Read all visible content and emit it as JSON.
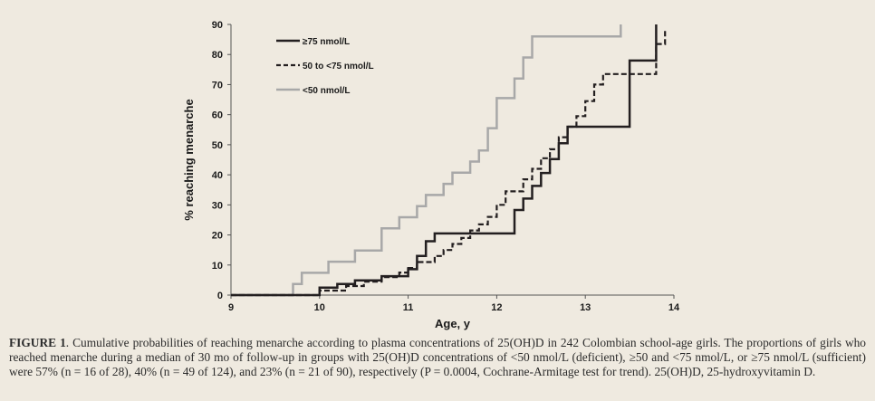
{
  "chart_data": {
    "type": "line",
    "step": true,
    "xlabel": "Age, y",
    "ylabel": "% reaching menarche",
    "xlim": [
      9,
      14
    ],
    "ylim": [
      0,
      90
    ],
    "xticks": [
      9,
      10,
      11,
      12,
      13,
      14
    ],
    "yticks": [
      0,
      10,
      20,
      30,
      40,
      50,
      60,
      70,
      80,
      90
    ],
    "grid": false,
    "legend_position": "top-left",
    "series": [
      {
        "name": "≥75 nmol/L",
        "color": "#231f20",
        "dash": "solid",
        "x": [
          9.0,
          9.7,
          10.0,
          10.2,
          10.4,
          10.7,
          11.0,
          11.1,
          11.2,
          11.3,
          12.0,
          12.2,
          12.3,
          12.4,
          12.5,
          12.6,
          12.7,
          12.8,
          13.5,
          13.8
        ],
        "y": [
          0,
          0,
          2.5,
          3.7,
          4.9,
          6.3,
          8.6,
          13.0,
          17.9,
          20.5,
          20.5,
          28.3,
          32.1,
          36.3,
          40.6,
          45.2,
          50.5,
          56.0,
          78.0,
          90.0
        ]
      },
      {
        "name": "50 to <75 nmol/L",
        "color": "#231f20",
        "dash": "dashed",
        "x": [
          9.0,
          9.7,
          10.0,
          10.3,
          10.5,
          10.7,
          10.9,
          11.0,
          11.1,
          11.3,
          11.4,
          11.5,
          11.6,
          11.7,
          11.8,
          11.9,
          12.0,
          12.1,
          12.3,
          12.4,
          12.5,
          12.6,
          12.7,
          12.8,
          12.9,
          13.0,
          13.1,
          13.2,
          13.8,
          13.9
        ],
        "y": [
          0,
          0,
          1.5,
          3.0,
          4.5,
          6.0,
          7.5,
          9.0,
          11.0,
          13.0,
          15.0,
          17.0,
          19.0,
          21.5,
          23.5,
          26.0,
          30.0,
          34.5,
          38.5,
          42.0,
          45.5,
          48.5,
          52.5,
          56.0,
          59.5,
          64.5,
          70.0,
          73.5,
          83.5,
          88.5
        ]
      },
      {
        "name": "<50 nmol/L",
        "color": "#a8a8a8",
        "dash": "solid",
        "x": [
          9.0,
          9.7,
          9.8,
          10.1,
          10.4,
          10.7,
          10.9,
          11.1,
          11.2,
          11.4,
          11.5,
          11.7,
          11.8,
          11.9,
          12.0,
          12.2,
          12.3,
          12.4,
          13.4
        ],
        "y": [
          0,
          3.7,
          7.4,
          11.1,
          14.8,
          22.2,
          25.9,
          29.6,
          33.3,
          37.0,
          40.7,
          44.4,
          48.1,
          55.5,
          65.5,
          72.0,
          79.0,
          86.0,
          90.0
        ]
      }
    ]
  },
  "caption": {
    "label": "FIGURE 1",
    "text": ". Cumulative probabilities of reaching menarche according to plasma concentrations of 25(OH)D in 242 Colombian school-age girls. The proportions of girls who reached menarche during a median of 30 mo of follow-up in groups with 25(OH)D concentrations of <50 nmol/L (deficient), ≥50 and <75 nmol/L, or ≥75 nmol/L (sufficient) were 57% (n = 16 of 28), 40% (n = 49 of 124), and 23% (n = 21 of 90), respectively (P = 0.0004, Cochrane-Armitage test for trend). 25(OH)D, 25-hydroxyvitamin D."
  }
}
